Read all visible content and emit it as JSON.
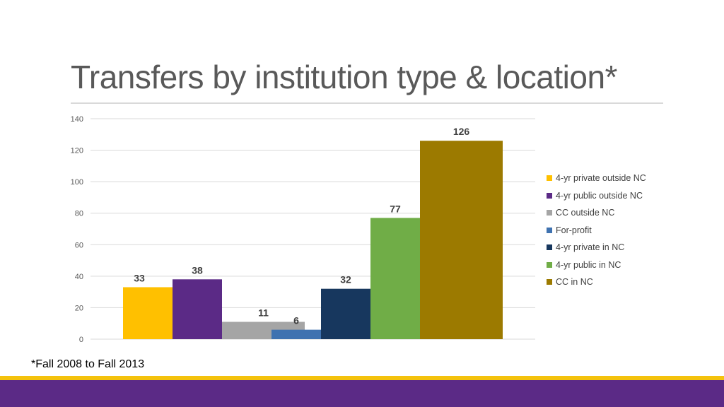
{
  "title": "Transfers by institution type & location*",
  "footnote": "*Fall 2008 to Fall 2013",
  "colors": {
    "band_gold": "#f4c20d",
    "band_purple": "#5b2a86"
  },
  "chart_data": {
    "type": "bar",
    "title": "",
    "xlabel": "",
    "ylabel": "",
    "ylim": [
      0,
      140
    ],
    "yticks": [
      0,
      20,
      40,
      60,
      80,
      100,
      120,
      140
    ],
    "grid": true,
    "legend_position": "right",
    "series": [
      {
        "name": "4-yr private outside NC",
        "value": 33,
        "color": "#ffc000"
      },
      {
        "name": "4-yr public outside NC",
        "value": 38,
        "color": "#5b2a86"
      },
      {
        "name": "CC outside NC",
        "value": 11,
        "color": "#a5a5a5"
      },
      {
        "name": "For-profit",
        "value": 6,
        "color": "#3f72b0"
      },
      {
        "name": "4-yr private in NC",
        "value": 32,
        "color": "#17375e"
      },
      {
        "name": "4-yr public in NC",
        "value": 77,
        "color": "#70ad47"
      },
      {
        "name": "CC in NC",
        "value": 126,
        "color": "#9c7a00"
      }
    ]
  }
}
